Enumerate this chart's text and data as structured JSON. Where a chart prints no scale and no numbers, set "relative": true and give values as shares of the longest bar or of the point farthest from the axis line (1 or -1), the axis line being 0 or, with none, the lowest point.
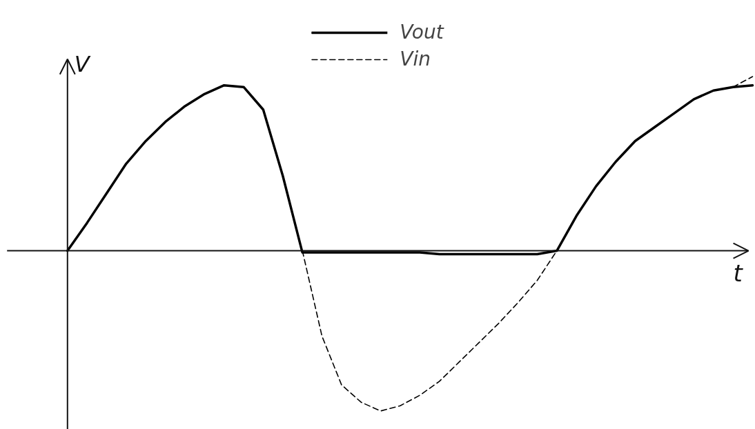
{
  "chart_data": {
    "type": "line",
    "xlabel": "t",
    "ylabel": "V",
    "relative": true,
    "legend": "top",
    "marker": "none",
    "grid": false,
    "categories": [
      null,
      null,
      null,
      null,
      null,
      null,
      null,
      null,
      null,
      null,
      null,
      null,
      null,
      null,
      null,
      null,
      null,
      null,
      null,
      null,
      null,
      null,
      null,
      null,
      null,
      null,
      null,
      null,
      null,
      null,
      null,
      null,
      null,
      null,
      null,
      null
    ],
    "series": [
      {
        "name": "Vout",
        "color": "#000000",
        "line_style": "solid",
        "values": [
          0,
          0.16,
          0.33,
          0.5,
          0.63,
          0.74,
          0.83,
          0.9,
          0.95,
          0.94,
          0.81,
          0.43,
          -0.01,
          -0.01,
          -0.01,
          -0.01,
          -0.01,
          -0.01,
          -0.01,
          -0.02,
          -0.02,
          -0.02,
          -0.02,
          -0.02,
          -0.02,
          0,
          0.2,
          0.37,
          0.51,
          0.63,
          0.71,
          0.79,
          0.87,
          0.92,
          0.94,
          0.95
        ]
      },
      {
        "name": "Vin",
        "color": "#000000",
        "line_style": "dashed",
        "values": [
          null,
          null,
          null,
          null,
          null,
          null,
          null,
          null,
          null,
          null,
          null,
          null,
          0,
          -0.49,
          -0.77,
          -0.87,
          -0.92,
          -0.89,
          -0.83,
          -0.75,
          -0.64,
          -0.53,
          -0.42,
          -0.3,
          -0.17,
          0,
          null,
          null,
          null,
          null,
          null,
          null,
          null,
          null,
          0.94,
          1.0
        ]
      }
    ]
  }
}
